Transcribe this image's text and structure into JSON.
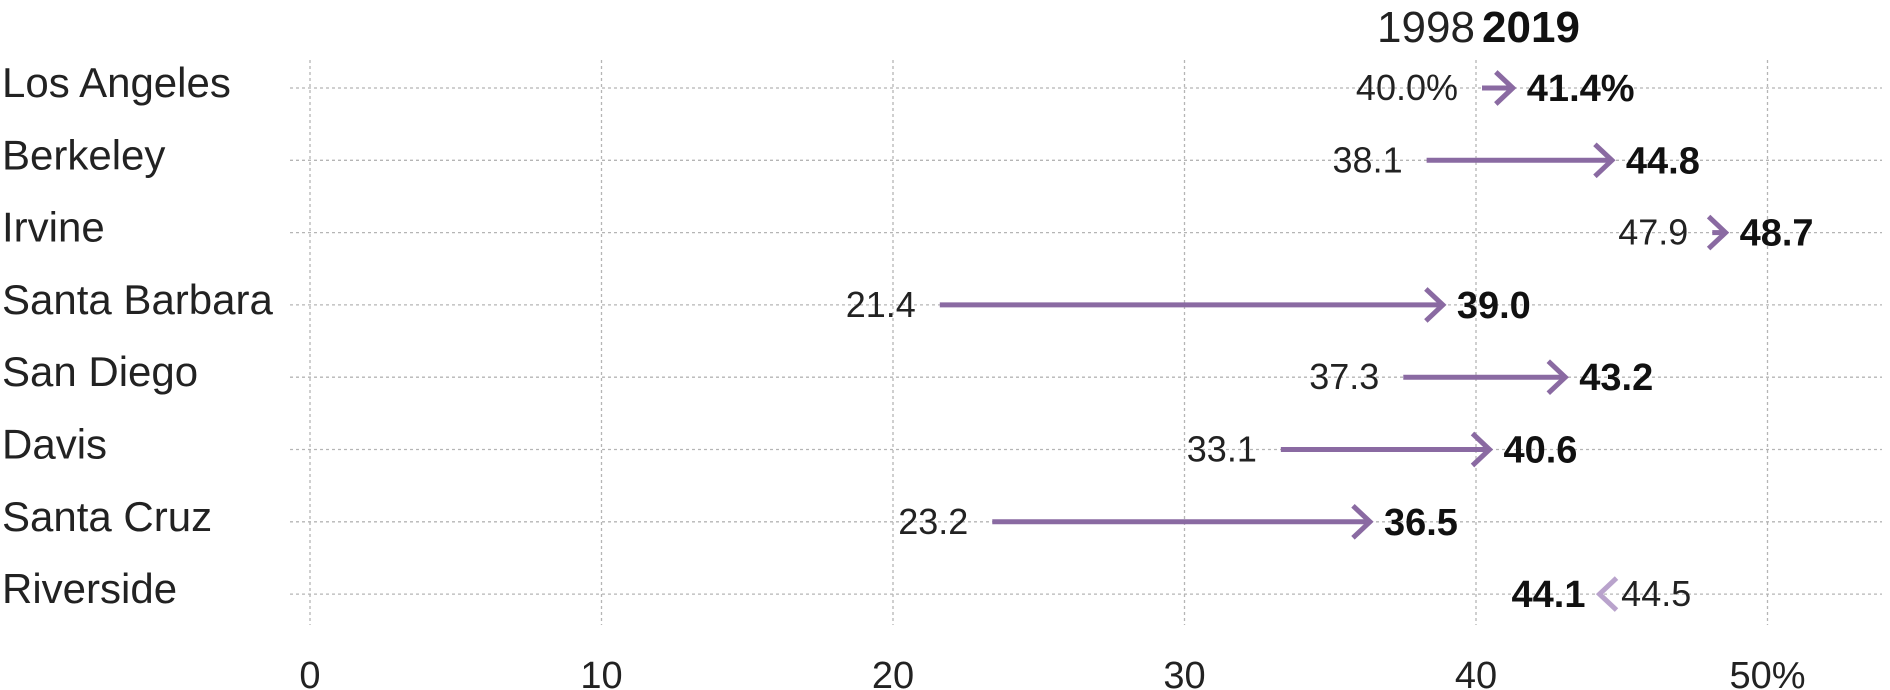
{
  "chart_data": {
    "type": "dot-arrow",
    "legend": {
      "start_label": "1998",
      "end_label": "2019"
    },
    "x_ticks": [
      "0",
      "10",
      "20",
      "30",
      "40",
      "50%"
    ],
    "xlim": [
      0,
      50
    ],
    "x_tick_values": [
      0,
      10,
      20,
      30,
      40,
      50
    ],
    "grid": true,
    "colors": {
      "arrow": "#8a6aa2",
      "arrow_decrease": "#b9a3cc",
      "grid": "#b5b5b5"
    },
    "categories": [
      "Los Angeles",
      "Berkeley",
      "Irvine",
      "Santa Barbara",
      "San Diego",
      "Davis",
      "Santa Cruz",
      "Riverside"
    ],
    "series": [
      {
        "name": "1998",
        "values": [
          40.0,
          38.1,
          47.9,
          21.4,
          37.3,
          33.1,
          23.2,
          44.5
        ],
        "labels": [
          "40.0%",
          "38.1",
          "47.9",
          "21.4",
          "37.3",
          "33.1",
          "23.2",
          "44.5"
        ]
      },
      {
        "name": "2019",
        "values": [
          41.4,
          44.8,
          48.7,
          39.0,
          43.2,
          40.6,
          36.5,
          44.1
        ],
        "labels": [
          "41.4%",
          "44.8",
          "48.7",
          "39.0",
          "43.2",
          "40.6",
          "36.5",
          "44.1"
        ]
      }
    ]
  }
}
